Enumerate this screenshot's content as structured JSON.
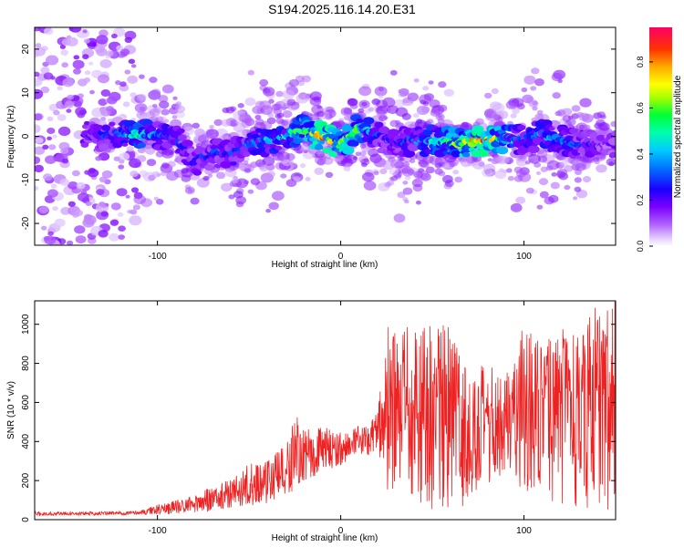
{
  "title": "S194.2025.116.14.20.E31",
  "chart_data": [
    {
      "type": "heatmap",
      "xlabel": "Height of straight line (km)",
      "ylabel": "Frequency (Hz)",
      "xlim": [
        -167,
        150
      ],
      "ylim": [
        -25,
        25
      ],
      "x_ticks": [
        -100,
        0,
        100
      ],
      "y_ticks": [
        -20,
        -10,
        0,
        10,
        20
      ],
      "colorbar": {
        "label": "Normalized spectral amplitude",
        "range": [
          0,
          0.95
        ],
        "ticks": [
          0.0,
          0.2,
          0.4,
          0.6,
          0.8
        ],
        "colormap": [
          "#ffffff",
          "#e0c8ff",
          "#8a2be2",
          "#1a00ff",
          "#00ccff",
          "#00ff66",
          "#ffff00",
          "#ff8000",
          "#ff0000",
          "#ff0066"
        ]
      },
      "ridge": {
        "x": [
          -160,
          -140,
          -120,
          -110,
          -100,
          -90,
          -80,
          -70,
          -60,
          -50,
          -40,
          -30,
          -20,
          -10,
          0,
          10,
          20,
          30,
          40,
          50,
          60,
          70,
          80,
          90,
          100,
          110,
          120,
          130,
          140,
          150
        ],
        "frequency": [
          0,
          0,
          0.5,
          0.5,
          0.5,
          0,
          -6,
          -4,
          -4,
          -2,
          -1,
          0,
          1.5,
          0,
          -2,
          2,
          0,
          -1.5,
          -1,
          -1,
          -1.5,
          -1.5,
          -1,
          -0.5,
          -1,
          0.5,
          -1,
          -2,
          -2,
          -2
        ],
        "peak_amplitude": [
          0.2,
          0.25,
          0.35,
          0.5,
          0.35,
          0.3,
          0.25,
          0.3,
          0.3,
          0.35,
          0.4,
          0.45,
          0.6,
          0.8,
          0.7,
          0.55,
          0.3,
          0.25,
          0.35,
          0.45,
          0.6,
          0.75,
          0.85,
          0.5,
          0.35,
          0.4,
          0.35,
          0.3,
          0.25,
          0.2
        ]
      }
    },
    {
      "type": "line",
      "xlabel": "Height of straight line (km)",
      "ylabel": "SNR (10 * v/v)",
      "xlim": [
        -167,
        150
      ],
      "ylim": [
        0,
        1120
      ],
      "x_ticks": [
        -100,
        0,
        100
      ],
      "y_ticks": [
        0,
        200,
        400,
        600,
        800,
        1000
      ],
      "color": "#ee2222",
      "envelope": {
        "x": [
          -167,
          -140,
          -110,
          -100,
          -90,
          -80,
          -70,
          -60,
          -50,
          -40,
          -30,
          -25,
          -20,
          -10,
          0,
          10,
          15,
          20,
          25,
          30,
          40,
          50,
          60,
          70,
          80,
          90,
          100,
          110,
          120,
          130,
          140,
          150
        ],
        "low": [
          20,
          22,
          25,
          25,
          30,
          35,
          40,
          60,
          70,
          80,
          110,
          150,
          180,
          240,
          280,
          300,
          330,
          360,
          80,
          60,
          60,
          50,
          50,
          80,
          100,
          250,
          120,
          80,
          60,
          50,
          50,
          50
        ],
        "high": [
          40,
          40,
          45,
          80,
          100,
          130,
          170,
          210,
          290,
          320,
          380,
          560,
          460,
          480,
          450,
          480,
          500,
          560,
          1000,
          950,
          1020,
          1020,
          980,
          760,
          800,
          750,
          1050,
          900,
          1000,
          950,
          1120,
          1120
        ]
      }
    }
  ]
}
